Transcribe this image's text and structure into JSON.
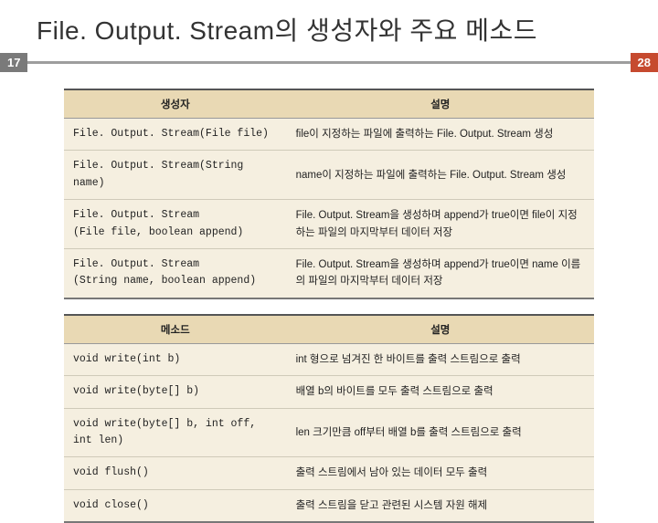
{
  "title": "File. Output. Stream의 생성자와 주요 메소드",
  "page_left": "17",
  "page_right": "28",
  "colors": {
    "title_text": "#333333",
    "left_tab_bg": "#7a7a7a",
    "right_tab_bg": "#c64a2f",
    "bar": "#9d9d9d",
    "table_header_bg": "#e9d9b4",
    "table_cell_bg": "#f5efe0",
    "table_border_top": "#555555",
    "table_row_divider": "#cfcab9"
  },
  "table1": {
    "headers": [
      "생성자",
      "설명"
    ],
    "rows": [
      {
        "c0": "File. Output. Stream(File file)",
        "c1": "file이 지정하는 파일에 출력하는 File. Output. Stream 생성"
      },
      {
        "c0": "File. Output. Stream(String name)",
        "c1": "name이 지정하는 파일에 출력하는 File. Output. Stream 생성"
      },
      {
        "c0": "File. Output. Stream\n(File file, boolean append)",
        "c1": "File. Output. Stream을 생성하며 append가 true이면 file이 지정하는 파일의 마지막부터 데이터 저장"
      },
      {
        "c0": "File. Output. Stream\n(String name, boolean append)",
        "c1": "File. Output. Stream을 생성하며 append가 true이면 name 이름의 파일의 마지막부터 데이터 저장"
      }
    ],
    "col_widths_pct": [
      42,
      58
    ]
  },
  "table2": {
    "headers": [
      "메소드",
      "설명"
    ],
    "rows": [
      {
        "c0": "void write(int b)",
        "c1": "int 형으로 넘겨진 한 바이트를 출력 스트림으로 출력"
      },
      {
        "c0": "void write(byte[] b)",
        "c1": "배열 b의 바이트를 모두 출력 스트림으로 출력"
      },
      {
        "c0": "void write(byte[] b, int off, int len)",
        "c1": "len 크기만큼 off부터 배열 b를 출력 스트림으로 출력"
      },
      {
        "c0": "void flush()",
        "c1": "출력 스트림에서 남아 있는 데이터 모두 출력"
      },
      {
        "c0": "void close()",
        "c1": "출력 스트림을 닫고 관련된 시스템 자원 해제"
      }
    ],
    "col_widths_pct": [
      42,
      58
    ]
  }
}
